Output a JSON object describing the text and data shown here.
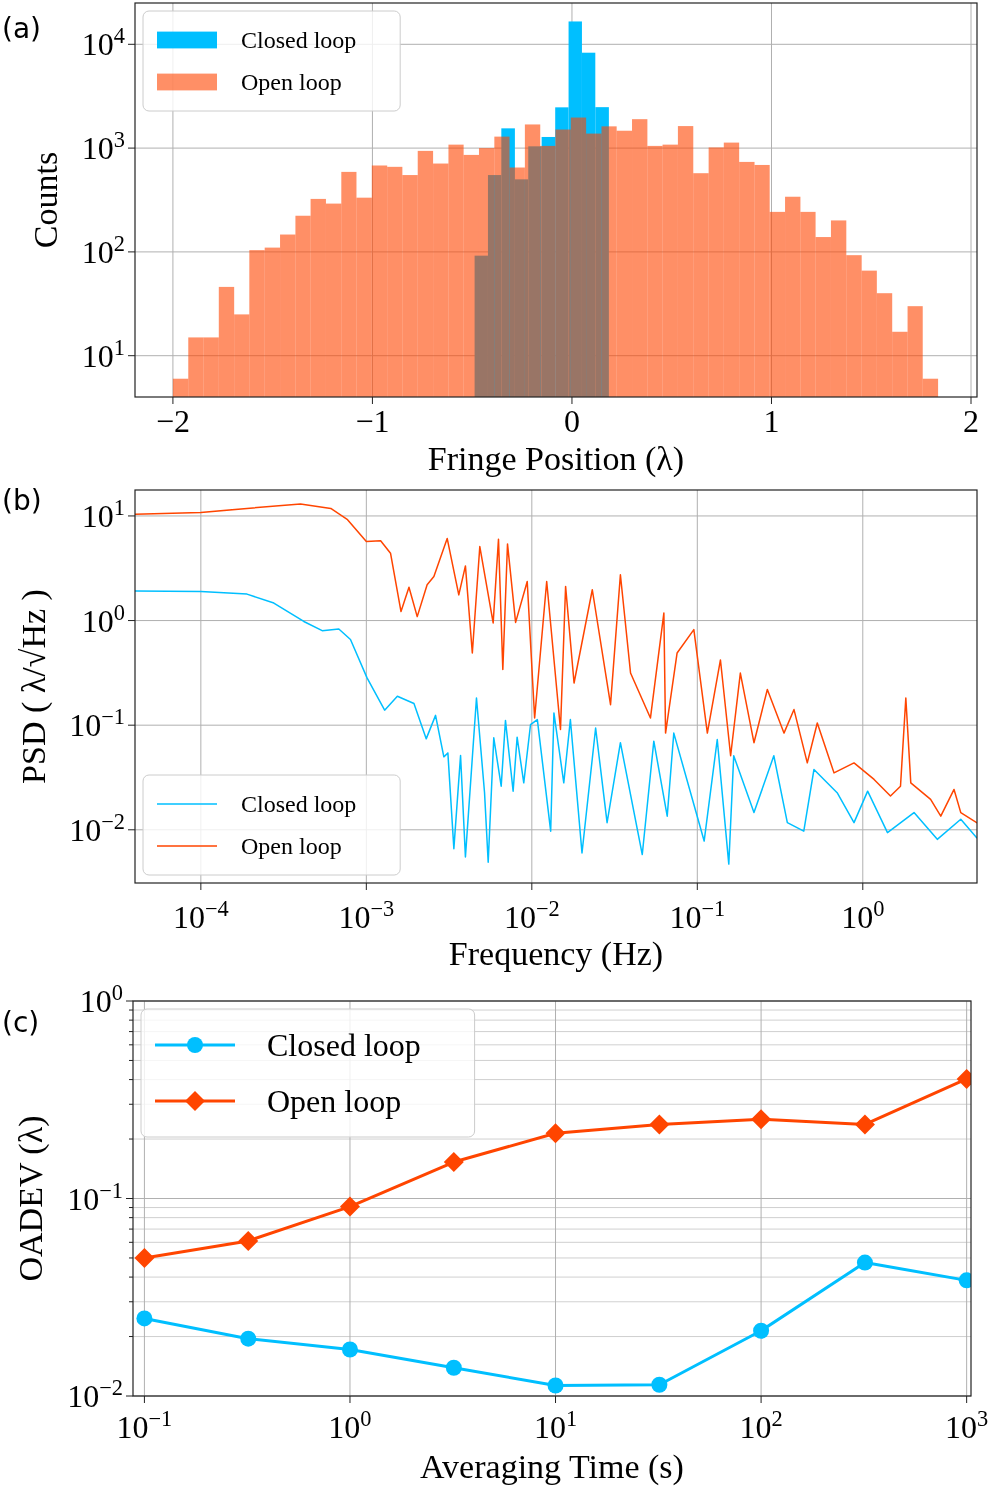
{
  "chart_data": [
    {
      "type": "histogram",
      "annotations": [
        "(a)"
      ],
      "xlabel": "Fringe Position (λ)",
      "ylabel": "Counts",
      "log": "y",
      "grid": true,
      "legend": "top left",
      "xlim": [
        -2.19,
        2.03
      ],
      "ylim": [
        4,
        25000
      ],
      "xticks": [
        {
          "value": -2,
          "label": "−2"
        },
        {
          "value": -1,
          "label": "−1"
        },
        0,
        1,
        2
      ],
      "yticks": [
        {
          "value": 10,
          "label": "10$^{1}$"
        },
        {
          "value": 100,
          "label": "10$^{2}$"
        },
        {
          "value": 1000,
          "label": "10$^{3}$"
        },
        {
          "value": 10000,
          "label": "10$^{4}$"
        }
      ],
      "series": [
        {
          "name": "Closed loop",
          "color": "#00bfff",
          "bins": [
            -0.488,
            -0.421,
            -0.354,
            -0.286,
            -0.219,
            -0.152,
            -0.084,
            -0.017,
            0.05,
            0.117,
            0.185
          ],
          "values": [
            92,
            550,
            1550,
            500,
            1040,
            1280,
            2470,
            16600,
            8300,
            2480
          ]
        },
        {
          "name": "Open loop",
          "color": "#ff4500",
          "values": [
            6,
            15,
            15,
            46,
            25,
            104,
            110,
            147,
            223,
            324,
            292,
            590,
            333,
            680,
            660,
            550,
            940,
            710,
            1080,
            860,
            1000,
            1290,
            650,
            1690,
            1050,
            1510,
            1970,
            1380,
            1620,
            1470,
            1900,
            1050,
            1080,
            1630,
            573,
            1015,
            1130,
            736,
            688,
            243,
            340,
            243,
            139,
            201,
            93,
            66,
            40,
            17,
            30,
            6
          ]
        }
      ],
      "bins": [
        -2.0,
        -1.923,
        -1.847,
        -1.77,
        -1.693,
        -1.617,
        -1.54,
        -1.463,
        -1.386,
        -1.31,
        -1.233,
        -1.156,
        -1.08,
        -1.003,
        -0.926,
        -0.85,
        -0.773,
        -0.696,
        -0.619,
        -0.543,
        -0.466,
        -0.389,
        -0.313,
        -0.236,
        -0.159,
        -0.083,
        -0.006,
        0.071,
        0.148,
        0.224,
        0.301,
        0.378,
        0.454,
        0.531,
        0.608,
        0.685,
        0.761,
        0.838,
        0.915,
        0.991,
        1.068,
        1.145,
        1.221,
        1.298,
        1.375,
        1.452,
        1.528,
        1.605,
        1.682,
        1.758,
        1.835
      ]
    },
    {
      "type": "line",
      "annotations": [
        "(b)"
      ],
      "xlabel": "Frequency (Hz)",
      "ylabel": "PSD ( λ/√Hz )",
      "log": "xy",
      "grid": true,
      "legend": "bottom left",
      "xlim": [
        4e-05,
        4.9
      ],
      "ylim": [
        0.0031,
        17.7
      ],
      "xticks": [
        {
          "value": 0.0001,
          "label": "10$^{−4}$"
        },
        {
          "value": 0.001,
          "label": "10$^{−3}$"
        },
        {
          "value": 0.01,
          "label": "10$^{−2}$"
        },
        {
          "value": 0.1,
          "label": "10$^{−1}$"
        },
        {
          "value": 1,
          "label": "10$^{0}$"
        }
      ],
      "yticks": [
        {
          "value": 0.01,
          "label": "10$^{−2}$"
        },
        {
          "value": 0.1,
          "label": "10$^{−1}$"
        },
        {
          "value": 1,
          "label": "10$^{0}$"
        },
        {
          "value": 10,
          "label": "10$^{1}$"
        }
      ],
      "series": [
        {
          "name": "Closed loop",
          "color": "#00bfff",
          "x": [
            4e-05,
            0.0001,
            0.00019,
            0.000276,
            0.000419,
            0.000541,
            0.000682,
            0.000802,
            0.00101,
            0.00129,
            0.00154,
            0.00194,
            0.0023,
            0.00262,
            0.00294,
            0.00311,
            0.00338,
            0.00371,
            0.00397,
            0.00463,
            0.00518,
            0.00545,
            0.00589,
            0.00653,
            0.00693,
            0.00771,
            0.00815,
            0.00894,
            0.00982,
            0.0108,
            0.013,
            0.0136,
            0.0156,
            0.0171,
            0.0201,
            0.0243,
            0.0285,
            0.0343,
            0.0465,
            0.0546,
            0.0658,
            0.0721,
            0.11,
            0.132,
            0.155,
            0.166,
            0.22,
            0.29,
            0.35,
            0.44,
            0.507,
            0.7,
            0.885,
            1.07,
            1.41,
            2.04,
            2.82,
            3.91,
            4.88
          ],
          "values": [
            1.92,
            1.9,
            1.79,
            1.47,
            0.98,
            0.8,
            0.83,
            0.66,
            0.283,
            0.139,
            0.189,
            0.161,
            0.074,
            0.124,
            0.0498,
            0.0543,
            0.0066,
            0.0513,
            0.0055,
            0.182,
            0.0226,
            0.0049,
            0.0757,
            0.0261,
            0.111,
            0.0234,
            0.0767,
            0.0281,
            0.101,
            0.113,
            0.0097,
            0.131,
            0.0281,
            0.113,
            0.006,
            0.094,
            0.0117,
            0.068,
            0.0058,
            0.0703,
            0.0135,
            0.084,
            0.0078,
            0.073,
            0.0047,
            0.051,
            0.0146,
            0.051,
            0.0117,
            0.0097,
            0.0377,
            0.0226,
            0.0117,
            0.0234,
            0.0094,
            0.0146,
            0.0081,
            0.0126,
            0.0084
          ]
        },
        {
          "name": "Open loop",
          "color": "#ff4500",
          "x": [
            4e-05,
            0.0001,
            0.00019,
            0.0004,
            0.00061,
            0.00077,
            0.001,
            0.00122,
            0.0014,
            0.00162,
            0.00181,
            0.00203,
            0.00233,
            0.00256,
            0.00308,
            0.00362,
            0.00397,
            0.00437,
            0.00485,
            0.00584,
            0.00629,
            0.00668,
            0.00713,
            0.00798,
            0.00938,
            0.0104,
            0.0123,
            0.0149,
            0.016,
            0.018,
            0.0232,
            0.0299,
            0.0343,
            0.0395,
            0.0521,
            0.0628,
            0.0643,
            0.0755,
            0.0953,
            0.115,
            0.138,
            0.159,
            0.182,
            0.22,
            0.265,
            0.334,
            0.384,
            0.462,
            0.531,
            0.67,
            0.885,
            1.17,
            1.47,
            1.69,
            1.82,
            1.95,
            2.57,
            2.96,
            3.56,
            3.91,
            4.88
          ],
          "values": [
            10.4,
            10.8,
            11.8,
            13.0,
            11.8,
            9.2,
            5.7,
            5.8,
            4.4,
            1.22,
            2.08,
            1.09,
            2.2,
            2.64,
            6.1,
            1.76,
            3.33,
            0.49,
            5.1,
            0.95,
            6.0,
            0.34,
            5.4,
            0.96,
            2.36,
            0.117,
            2.36,
            0.091,
            2.12,
            0.253,
            1.97,
            0.157,
            2.74,
            0.315,
            0.117,
            1.18,
            0.084,
            0.49,
            0.82,
            0.084,
            0.42,
            0.051,
            0.315,
            0.068,
            0.219,
            0.084,
            0.141,
            0.0436,
            0.105,
            0.035,
            0.0436,
            0.0303,
            0.021,
            0.0261,
            0.182,
            0.0281,
            0.0195,
            0.0135,
            0.0243,
            0.0146,
            0.0117
          ]
        }
      ]
    },
    {
      "type": "line",
      "annotations": [
        "(c)"
      ],
      "xlabel": "Averaging Time (s)",
      "ylabel": "OADEV (λ)",
      "log": "xy",
      "grid": true,
      "legend": "top left",
      "xlim": [
        0.088,
        1050
      ],
      "ylim": [
        0.01,
        1
      ],
      "xticks": [
        {
          "value": 0.1,
          "label": "10$^{−1}$"
        },
        {
          "value": 1,
          "label": "10$^{0}$"
        },
        {
          "value": 10,
          "label": "10$^{1}$"
        },
        {
          "value": 100,
          "label": "10$^{2}$"
        },
        {
          "value": 1000,
          "label": "10$^{3}$"
        }
      ],
      "yticks": [
        {
          "value": 0.01,
          "label": "10$^{−2}$"
        },
        {
          "value": 0.02,
          "label": null
        },
        {
          "value": 0.03,
          "label": null
        },
        {
          "value": 0.04,
          "label": null
        },
        {
          "value": 0.05,
          "label": null
        },
        {
          "value": 0.06,
          "label": null
        },
        {
          "value": 0.07,
          "label": null
        },
        {
          "value": 0.08,
          "label": null
        },
        {
          "value": 0.09,
          "label": null
        },
        {
          "value": 0.1,
          "label": "10$^{−1}$"
        },
        {
          "value": 0.2,
          "label": null
        },
        {
          "value": 0.3,
          "label": null
        },
        {
          "value": 0.4,
          "label": null
        },
        {
          "value": 0.5,
          "label": null
        },
        {
          "value": 0.6,
          "label": null
        },
        {
          "value": 0.7,
          "label": null
        },
        {
          "value": 0.8,
          "label": null
        },
        {
          "value": 0.9,
          "label": null
        },
        {
          "value": 1,
          "label": "10$^{0}$"
        }
      ],
      "series": [
        {
          "name": "Closed loop",
          "color": "#00bfff",
          "marker": "circle",
          "x": [
            0.1,
            0.32,
            1,
            3.2,
            10,
            32,
            100,
            320,
            1000
          ],
          "values": [
            0.0247,
            0.0195,
            0.0172,
            0.0139,
            0.0113,
            0.0114,
            0.0214,
            0.0474,
            0.0385
          ]
        },
        {
          "name": "Open loop",
          "color": "#ff4500",
          "marker": "diamond",
          "x": [
            0.1,
            0.32,
            1,
            3.2,
            10,
            32,
            100,
            320,
            1000
          ],
          "values": [
            0.05,
            0.061,
            0.091,
            0.153,
            0.214,
            0.237,
            0.252,
            0.237,
            0.403
          ]
        }
      ]
    }
  ]
}
